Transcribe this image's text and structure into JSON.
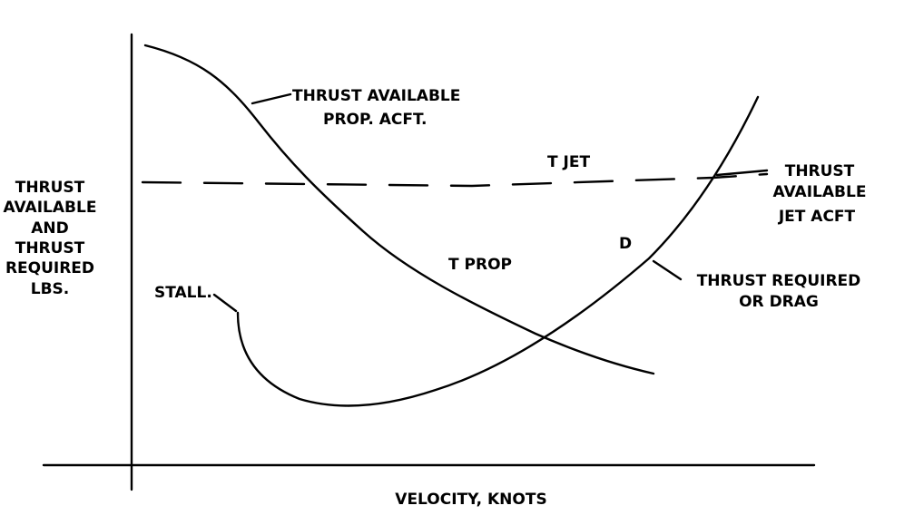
{
  "chart_data": {
    "type": "line",
    "title": "",
    "xlabel": "VELOCITY, KNOTS",
    "ylabel_lines": [
      "THRUST",
      "AVAILABLE",
      "AND",
      "THRUST",
      "REQUIRED",
      "LBS."
    ],
    "grid": false,
    "series": [
      {
        "name": "T PROP",
        "description_label": [
          "THRUST AVAILABLE",
          "PROP. ACFT."
        ],
        "style": "solid"
      },
      {
        "name": "T JET",
        "description_label": [
          "THRUST",
          "AVAILABLE",
          "JET ACFT"
        ],
        "style": "dashed"
      },
      {
        "name": "D",
        "description_label": [
          "THRUST REQUIRED",
          "OR DRAG"
        ],
        "style": "solid"
      }
    ],
    "annotations": [
      "STALL."
    ],
    "colors": {
      "ink": "#000000",
      "background": "#ffffff"
    }
  }
}
